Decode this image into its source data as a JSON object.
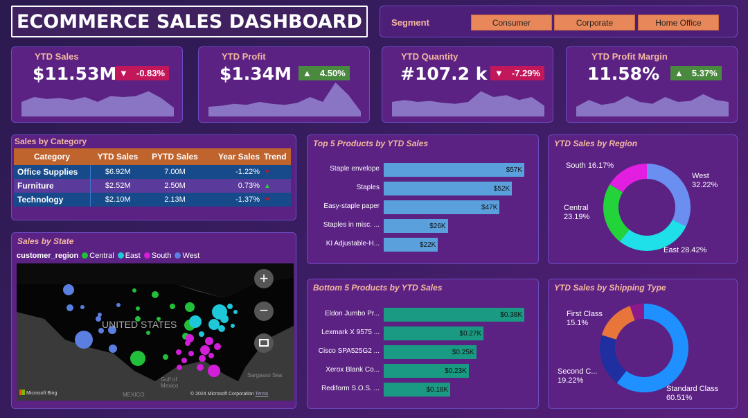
{
  "title": "ECOMMERCE SALES DASHBOARD",
  "segment": {
    "label": "Segment",
    "options": [
      "Consumer",
      "Corporate",
      "Home Office"
    ]
  },
  "kpis": [
    {
      "label": "YTD Sales",
      "value": "$11.53M",
      "change": "-0.83%",
      "direction": "down"
    },
    {
      "label": "YTD Profit",
      "value": "$1.34M",
      "change": "4.50%",
      "direction": "up"
    },
    {
      "label": "YTD Quantity",
      "value": "#107.2 k",
      "change": "-7.29%",
      "direction": "down"
    },
    {
      "label": "YTD Profit Margin",
      "value": "11.58%",
      "change": "5.37%",
      "direction": "up"
    }
  ],
  "category_table": {
    "title": "Sales by Category",
    "headers": [
      "Category",
      "YTD Sales",
      "PYTD Sales",
      "Year Sales",
      "Trend"
    ],
    "rows": [
      {
        "category": "Office Supplies",
        "ytd": "$6.92M",
        "pytd": "7.00M",
        "yoy": "-1.22%",
        "trend": "down"
      },
      {
        "category": "Furniture",
        "ytd": "$2.52M",
        "pytd": "2.50M",
        "yoy": "0.73%",
        "trend": "up"
      },
      {
        "category": "Technology",
        "ytd": "$2.10M",
        "pytd": "2.13M",
        "yoy": "-1.37%",
        "trend": "down"
      }
    ]
  },
  "map": {
    "title": "Sales by State",
    "legend_title": "customer_region",
    "legend": [
      {
        "name": "Central",
        "color": "#22c03a"
      },
      {
        "name": "East",
        "color": "#1ec8d8"
      },
      {
        "name": "South",
        "color": "#d21ed8"
      },
      {
        "name": "West",
        "color": "#5b7fe0"
      }
    ],
    "country_label": "UNITED STATES",
    "labels": {
      "mexico": "MEXICO",
      "gulf": "Gulf of Mexico",
      "sea": "Sargasso Sea"
    },
    "bing": "Microsoft Bing",
    "copyright": "© 2024 Microsoft Corporation",
    "terms": "Terms"
  },
  "chart_data": [
    {
      "type": "bar",
      "title": "Top 5 Products by YTD Sales",
      "categories": [
        "Staple envelope",
        "Staples",
        "Easy-staple paper",
        "Staples in misc. ...",
        "KI Adjustable-H..."
      ],
      "values": [
        57,
        52,
        47,
        26,
        22
      ],
      "value_labels": [
        "$57K",
        "$52K",
        "$47K",
        "$26K",
        "$22K"
      ],
      "color": "#5aa0dc"
    },
    {
      "type": "bar",
      "title": "Bottom 5 Products by YTD Sales",
      "categories": [
        "Eldon Jumbo Pr...",
        "Lexmark X 9575 ...",
        "Cisco SPA525G2 ...",
        "Xerox Blank Co...",
        "Rediform S.O.S. ..."
      ],
      "values": [
        0.38,
        0.27,
        0.25,
        0.23,
        0.18
      ],
      "value_labels": [
        "$0.38K",
        "$0.27K",
        "$0.25K",
        "$0.23K",
        "$0.18K"
      ],
      "color": "#1a9a82"
    },
    {
      "type": "pie",
      "title": "YTD Sales by Region",
      "labels": [
        "West",
        "East",
        "Central",
        "South"
      ],
      "values": [
        32.22,
        28.42,
        23.19,
        16.17
      ],
      "value_labels": [
        "32.22%",
        "28.42%",
        "23.19%",
        "16.17%"
      ],
      "colors": [
        "#6b8ff0",
        "#1fe0e8",
        "#22d43a",
        "#e21ee0"
      ]
    },
    {
      "type": "pie",
      "title": "YTD Sales by Shipping Type",
      "labels": [
        "Standard Class",
        "Second C...",
        "First Class",
        ""
      ],
      "values": [
        60.51,
        19.22,
        15.1,
        5.17
      ],
      "value_labels": [
        "60.51%",
        "19.22%",
        "15.1%",
        ""
      ],
      "colors": [
        "#1e90ff",
        "#1f2fa0",
        "#e8763a",
        "#8b1a8a"
      ]
    }
  ]
}
